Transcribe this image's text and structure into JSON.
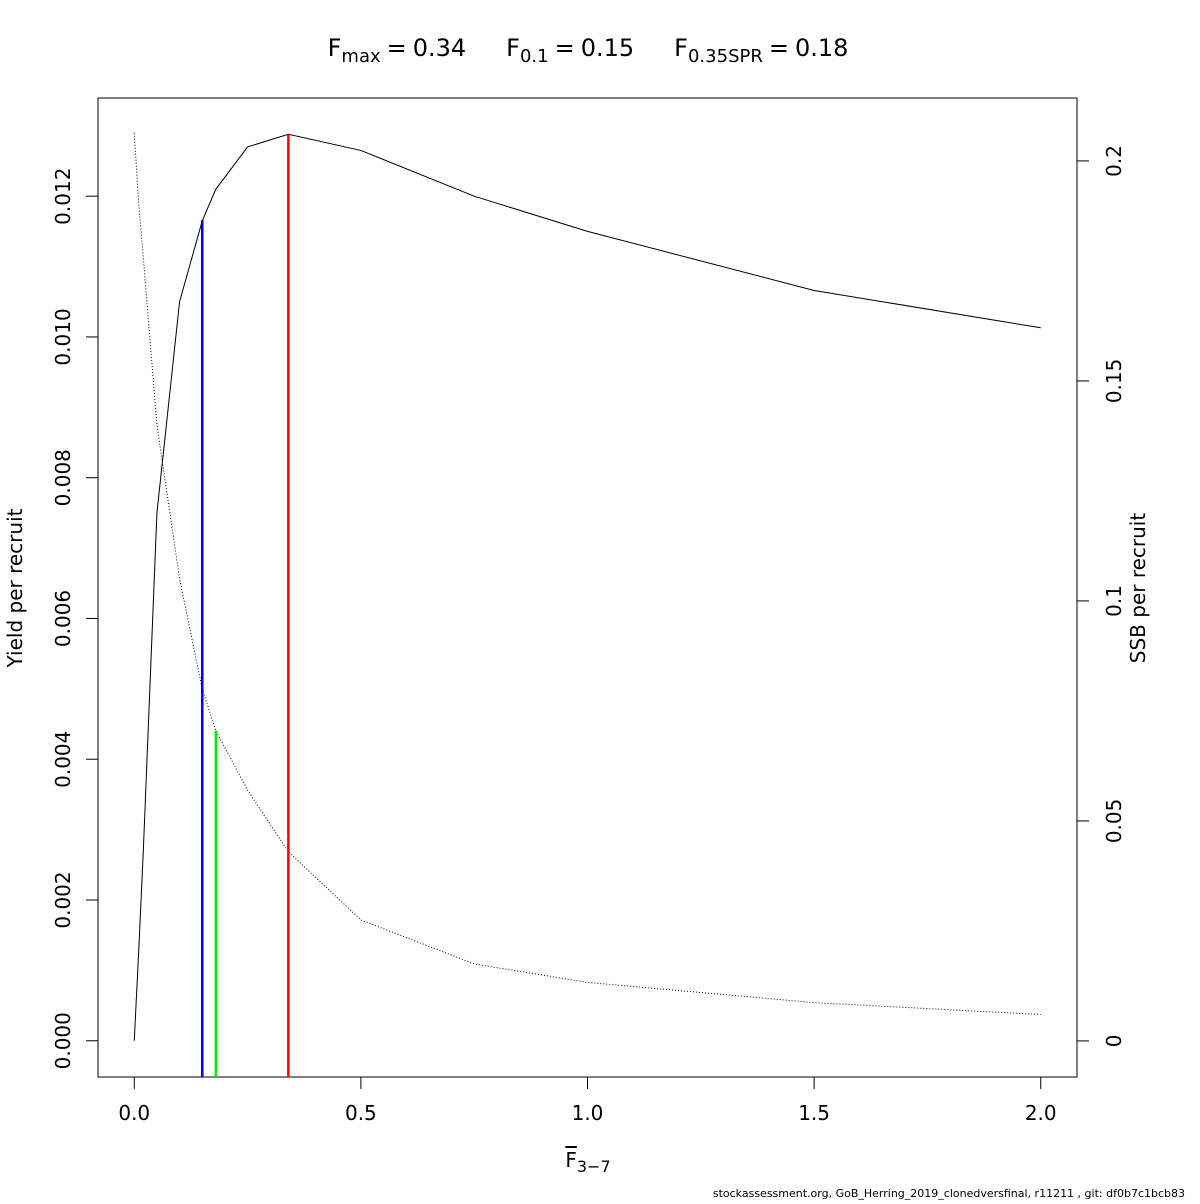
{
  "chart_data": {
    "type": "line",
    "title_parts": [
      {
        "label": "F",
        "subscript": "max",
        "sign": "=",
        "value": 0.34,
        "color": "#ff0000",
        "line_top": 0.01288,
        "axis": "y"
      },
      {
        "label": "F",
        "subscript": "0.1",
        "sign": "=",
        "value": 0.15,
        "color": "#0000ff",
        "line_top": 0.01166,
        "axis": "y"
      },
      {
        "label": "F",
        "subscript": "0.35SPR",
        "sign": "=",
        "value": 0.18,
        "color": "#00ee00",
        "line_top": 0.0705,
        "axis": "y2"
      }
    ],
    "x_label": {
      "text": "F",
      "subscript": "3−7"
    },
    "y_label": "Yield per recruit",
    "y2_label": "SSB per recruit",
    "x": [
      0,
      0.01,
      0.02,
      0.05,
      0.1,
      0.15,
      0.18,
      0.25,
      0.34,
      0.5,
      0.75,
      1.0,
      1.5,
      2.0
    ],
    "series": [
      {
        "name": "Yield per recruit",
        "color": "#000000",
        "line_style": "solid",
        "values": [
          0,
          0.0013,
          0.0027,
          0.0075,
          0.0105,
          0.01165,
          0.0121,
          0.0127,
          0.01288,
          0.01265,
          0.012,
          0.0115,
          0.01066,
          0.01013
        ]
      },
      {
        "name": "SSB per recruit",
        "color": "#000000",
        "line_style": "dotted",
        "axis": "y2",
        "values": [
          0.2064,
          0.19,
          0.178,
          0.14,
          0.105,
          0.08,
          0.0705,
          0.057,
          0.043,
          0.0275,
          0.0175,
          0.0133,
          0.0087,
          0.006
        ]
      }
    ],
    "xlim": [
      -0.08,
      2.08
    ],
    "xticks": [
      {
        "value": 0,
        "label": "0.0"
      },
      0.5,
      {
        "value": 1,
        "label": "1.0"
      },
      1.5,
      {
        "value": 2,
        "label": "2.0"
      }
    ],
    "ylim": [
      -0.000515,
      0.013395
    ],
    "yticks": [
      {
        "value": 0,
        "label": "0.000"
      },
      {
        "value": 0.002,
        "label": "0.002"
      },
      {
        "value": 0.004,
        "label": "0.004"
      },
      {
        "value": 0.006,
        "label": "0.006"
      },
      {
        "value": 0.008,
        "label": "0.008"
      },
      {
        "value": 0.01,
        "label": "0.010"
      },
      {
        "value": 0.012,
        "label": "0.012"
      }
    ],
    "y2lim": [
      -0.0082,
      0.2143
    ],
    "y2ticks": [
      0,
      0.05,
      0.1,
      0.15,
      0.2
    ],
    "footer": "stockassessment.org, GoB_Herring_2019_clonedversfinal, r11211 , git: df0b7c1bcb83"
  }
}
